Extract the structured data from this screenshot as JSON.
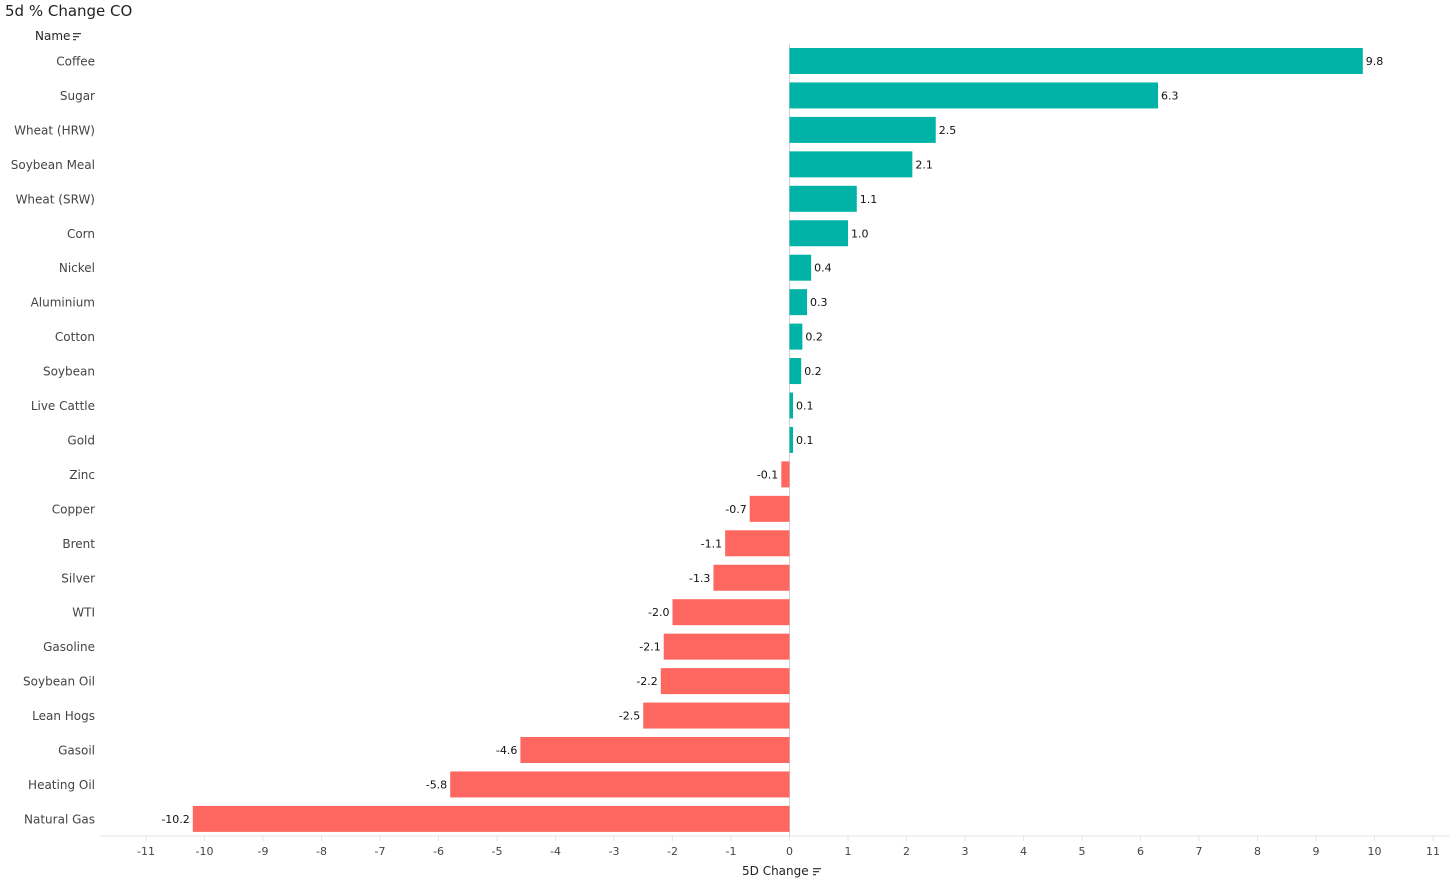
{
  "title": "5d % Change CO",
  "header": {
    "name_label": "Name",
    "sort_icon": "sort-descending-icon"
  },
  "colors": {
    "positive": "#00b3a6",
    "negative": "#fd6760",
    "axis": "#e6e6e6",
    "zero_line": "#d0d0d0",
    "text": "#333333"
  },
  "chart_data": {
    "type": "bar",
    "orientation": "horizontal",
    "title": "5d % Change CO",
    "xlabel": "5D Change",
    "ylabel": "Name",
    "xlim": [
      -11,
      11
    ],
    "xticks": [
      -11,
      -10,
      -9,
      -8,
      -7,
      -6,
      -5,
      -4,
      -3,
      -2,
      -1,
      0,
      1,
      2,
      3,
      4,
      5,
      6,
      7,
      8,
      9,
      10,
      11
    ],
    "grid": false,
    "categories": [
      "Coffee",
      "Sugar",
      "Wheat (HRW)",
      "Soybean Meal",
      "Wheat (SRW)",
      "Corn",
      "Nickel",
      "Aluminium",
      "Cotton",
      "Soybean",
      "Live Cattle",
      "Gold",
      "Zinc",
      "Copper",
      "Brent",
      "Silver",
      "WTI",
      "Gasoline",
      "Soybean Oil",
      "Lean Hogs",
      "Gasoil",
      "Heating Oil",
      "Natural Gas"
    ],
    "values": [
      9.8,
      6.3,
      2.5,
      2.1,
      1.15,
      1.0,
      0.37,
      0.3,
      0.22,
      0.2,
      0.06,
      0.06,
      -0.14,
      -0.68,
      -1.1,
      -1.3,
      -2.0,
      -2.15,
      -2.2,
      -2.5,
      -4.6,
      -5.8,
      -10.2
    ],
    "data_labels": [
      "9.8",
      "6.3",
      "2.5",
      "2.1",
      "1.1",
      "1.0",
      "0.4",
      "0.3",
      "0.2",
      "0.2",
      "0.1",
      "0.1",
      "-0.1",
      "-0.7",
      "-1.1",
      "-1.3",
      "-2.0",
      "-2.1",
      "-2.2",
      "-2.5",
      "-4.6",
      "-5.8",
      "-10.2"
    ]
  }
}
